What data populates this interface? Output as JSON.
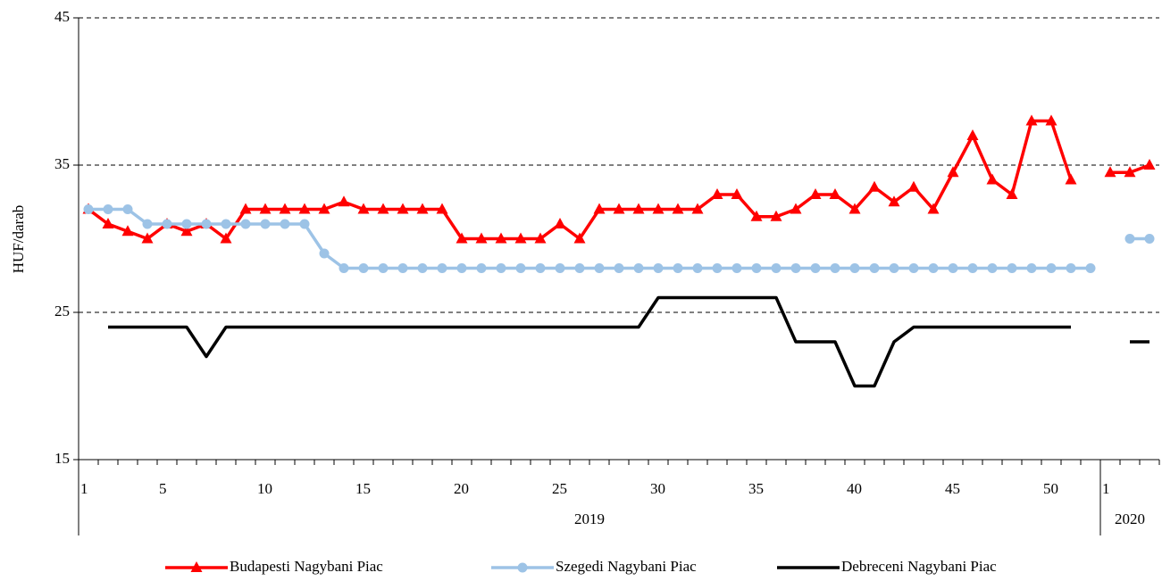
{
  "chart_data": {
    "type": "line",
    "ylabel": "HUF/darab",
    "ylim": [
      15,
      45
    ],
    "yticks": [
      15,
      25,
      35,
      45
    ],
    "grid": true,
    "legend": "bottom",
    "categories": [
      1,
      null,
      null,
      null,
      5,
      null,
      null,
      null,
      null,
      10,
      null,
      null,
      null,
      null,
      15,
      null,
      null,
      null,
      null,
      20,
      null,
      null,
      null,
      null,
      25,
      null,
      null,
      null,
      null,
      30,
      null,
      null,
      null,
      null,
      35,
      null,
      null,
      null,
      null,
      40,
      null,
      null,
      null,
      null,
      45,
      null,
      null,
      null,
      null,
      50,
      null,
      null,
      1,
      null,
      null
    ],
    "groups": [
      {
        "label": "2019",
        "count": 52
      },
      {
        "label": "2020",
        "count": 3
      }
    ],
    "series": [
      {
        "name": "Budapesti Nagybani Piac",
        "color": "#ff0000",
        "marker": "triangle",
        "values": [
          32,
          31,
          30.5,
          30,
          31,
          30.5,
          31,
          30,
          32,
          32,
          32,
          32,
          32,
          32.5,
          32,
          32,
          32,
          32,
          32,
          30,
          30,
          30,
          30,
          30,
          31,
          30,
          32,
          32,
          32,
          32,
          32,
          32,
          33,
          33,
          31.5,
          31.5,
          32,
          33,
          33,
          32,
          33.5,
          32.5,
          33.5,
          32,
          34.5,
          37,
          34,
          33,
          38,
          38,
          34,
          null,
          34.5,
          34.5,
          35
        ]
      },
      {
        "name": "Szegedi Nagybani Piac",
        "color": "#9dc3e6",
        "marker": "circle",
        "values": [
          32,
          32,
          32,
          31,
          31,
          31,
          31,
          31,
          31,
          31,
          31,
          31,
          29,
          28,
          28,
          28,
          28,
          28,
          28,
          28,
          28,
          28,
          28,
          28,
          28,
          28,
          28,
          28,
          28,
          28,
          28,
          28,
          28,
          28,
          28,
          28,
          28,
          28,
          28,
          28,
          28,
          28,
          28,
          28,
          28,
          28,
          28,
          28,
          28,
          28,
          28,
          28,
          null,
          30,
          30
        ]
      },
      {
        "name": "Debreceni Nagybani Piac",
        "color": "#000000",
        "marker": "none",
        "values": [
          null,
          24,
          24,
          24,
          24,
          24,
          22,
          24,
          24,
          24,
          24,
          24,
          24,
          24,
          24,
          24,
          24,
          24,
          24,
          24,
          24,
          24,
          24,
          24,
          24,
          24,
          24,
          24,
          24,
          26,
          26,
          26,
          26,
          26,
          26,
          26,
          23,
          23,
          23,
          20,
          20,
          23,
          24,
          24,
          24,
          24,
          24,
          24,
          24,
          24,
          24,
          null,
          null,
          23,
          23
        ]
      }
    ]
  }
}
